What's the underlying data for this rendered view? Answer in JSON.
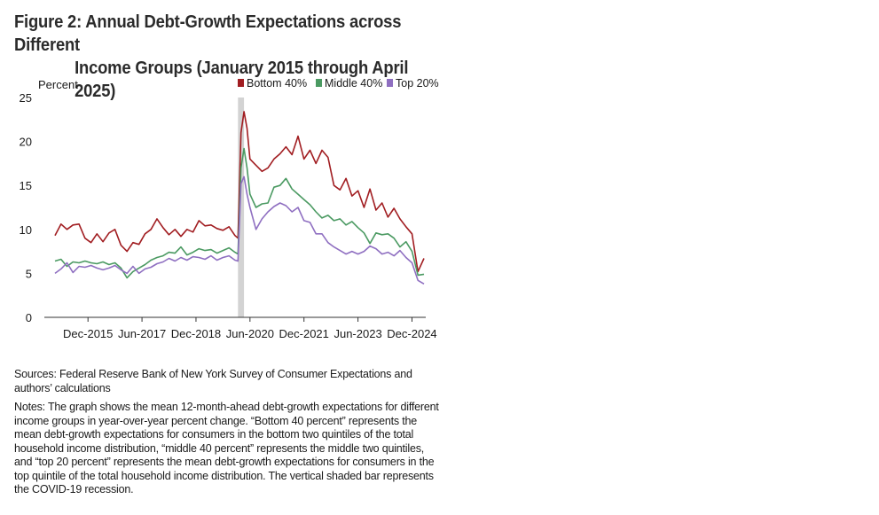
{
  "figure": {
    "title_line1": "Figure 2: Annual Debt-Growth Expectations across Different",
    "title_line2": "Income Groups (January 2015 through April 2025)",
    "sources": "Sources: Federal Reserve Bank of New York Survey of Consumer Expectations and authors’ calculations",
    "notes": "Notes: The graph shows the mean 12-month-ahead debt-growth expectations for different income groups in year-over-year percent change. “Bottom 40 percent” represents the mean debt-growth expectations for consumers in the bottom two quintiles of the total household income distribution, “middle 40 percent” represents the middle two quintiles, and “top 20 percent” represents the mean debt-growth expectations for consumers in the top quintile of the total household income distribution. The vertical shaded bar represents the COVID-19 recession."
  },
  "chart_data": {
    "type": "line",
    "ylabel": "Percent",
    "ylim": [
      0,
      25
    ],
    "yticks": [
      0,
      5,
      10,
      15,
      20,
      25
    ],
    "x_start": "2015-01",
    "x_end": "2025-04",
    "xtick_labels": [
      "Dec-2015",
      "Jun-2017",
      "Dec-2018",
      "Jun-2020",
      "Dec-2021",
      "Jun-2023",
      "Dec-2024"
    ],
    "xtick_dates": [
      "2015-12",
      "2017-06",
      "2018-12",
      "2020-06",
      "2021-12",
      "2023-06",
      "2024-12"
    ],
    "shaded_period": {
      "start": "2020-02",
      "end": "2020-04"
    },
    "legend_position": "top-right",
    "series": [
      {
        "name": "Bottom 40%",
        "color": "#a11d21",
        "points": [
          [
            "2015-01",
            9.3
          ],
          [
            "2015-03",
            10.6
          ],
          [
            "2015-05",
            10.0
          ],
          [
            "2015-07",
            10.5
          ],
          [
            "2015-09",
            10.6
          ],
          [
            "2015-11",
            9.0
          ],
          [
            "2016-01",
            8.5
          ],
          [
            "2016-03",
            9.5
          ],
          [
            "2016-05",
            8.6
          ],
          [
            "2016-07",
            9.6
          ],
          [
            "2016-09",
            10.0
          ],
          [
            "2016-11",
            8.2
          ],
          [
            "2017-01",
            7.5
          ],
          [
            "2017-03",
            8.5
          ],
          [
            "2017-05",
            8.3
          ],
          [
            "2017-07",
            9.5
          ],
          [
            "2017-09",
            10.0
          ],
          [
            "2017-11",
            11.2
          ],
          [
            "2018-01",
            10.2
          ],
          [
            "2018-03",
            9.4
          ],
          [
            "2018-05",
            10.0
          ],
          [
            "2018-07",
            9.2
          ],
          [
            "2018-09",
            10.0
          ],
          [
            "2018-11",
            9.7
          ],
          [
            "2019-01",
            11.0
          ],
          [
            "2019-03",
            10.4
          ],
          [
            "2019-05",
            10.5
          ],
          [
            "2019-07",
            10.1
          ],
          [
            "2019-09",
            9.9
          ],
          [
            "2019-11",
            10.3
          ],
          [
            "2020-01",
            9.3
          ],
          [
            "2020-02",
            9.0
          ],
          [
            "2020-03",
            21.0
          ],
          [
            "2020-04",
            23.4
          ],
          [
            "2020-05",
            21.5
          ],
          [
            "2020-06",
            18.0
          ],
          [
            "2020-08",
            17.3
          ],
          [
            "2020-10",
            16.6
          ],
          [
            "2020-12",
            17.0
          ],
          [
            "2021-02",
            18.0
          ],
          [
            "2021-04",
            18.6
          ],
          [
            "2021-06",
            19.4
          ],
          [
            "2021-08",
            18.5
          ],
          [
            "2021-10",
            20.6
          ],
          [
            "2021-12",
            18.0
          ],
          [
            "2022-02",
            19.0
          ],
          [
            "2022-04",
            17.5
          ],
          [
            "2022-06",
            19.0
          ],
          [
            "2022-08",
            18.2
          ],
          [
            "2022-10",
            15.0
          ],
          [
            "2022-12",
            14.5
          ],
          [
            "2023-02",
            15.8
          ],
          [
            "2023-04",
            13.8
          ],
          [
            "2023-06",
            14.4
          ],
          [
            "2023-08",
            12.5
          ],
          [
            "2023-10",
            14.6
          ],
          [
            "2023-12",
            12.2
          ],
          [
            "2024-02",
            13.0
          ],
          [
            "2024-04",
            11.4
          ],
          [
            "2024-06",
            12.4
          ],
          [
            "2024-08",
            11.2
          ],
          [
            "2024-10",
            10.3
          ],
          [
            "2024-12",
            9.5
          ],
          [
            "2025-02",
            5.2
          ],
          [
            "2025-04",
            6.7
          ]
        ]
      },
      {
        "name": "Middle 40%",
        "color": "#4b9a62",
        "points": [
          [
            "2015-01",
            6.4
          ],
          [
            "2015-03",
            6.6
          ],
          [
            "2015-05",
            5.8
          ],
          [
            "2015-07",
            6.3
          ],
          [
            "2015-09",
            6.2
          ],
          [
            "2015-11",
            6.4
          ],
          [
            "2016-01",
            6.2
          ],
          [
            "2016-03",
            6.1
          ],
          [
            "2016-05",
            6.3
          ],
          [
            "2016-07",
            6.0
          ],
          [
            "2016-09",
            6.2
          ],
          [
            "2016-11",
            5.6
          ],
          [
            "2017-01",
            4.5
          ],
          [
            "2017-03",
            5.2
          ],
          [
            "2017-05",
            5.6
          ],
          [
            "2017-07",
            6.0
          ],
          [
            "2017-09",
            6.5
          ],
          [
            "2017-11",
            6.8
          ],
          [
            "2018-01",
            7.0
          ],
          [
            "2018-03",
            7.4
          ],
          [
            "2018-05",
            7.3
          ],
          [
            "2018-07",
            8.0
          ],
          [
            "2018-09",
            7.1
          ],
          [
            "2018-11",
            7.4
          ],
          [
            "2019-01",
            7.8
          ],
          [
            "2019-03",
            7.6
          ],
          [
            "2019-05",
            7.7
          ],
          [
            "2019-07",
            7.3
          ],
          [
            "2019-09",
            7.6
          ],
          [
            "2019-11",
            7.9
          ],
          [
            "2020-01",
            7.4
          ],
          [
            "2020-02",
            7.2
          ],
          [
            "2020-03",
            17.0
          ],
          [
            "2020-04",
            19.2
          ],
          [
            "2020-05",
            17.0
          ],
          [
            "2020-06",
            14.0
          ],
          [
            "2020-08",
            12.5
          ],
          [
            "2020-10",
            12.9
          ],
          [
            "2020-12",
            13.0
          ],
          [
            "2021-02",
            14.8
          ],
          [
            "2021-04",
            15.0
          ],
          [
            "2021-06",
            15.8
          ],
          [
            "2021-08",
            14.6
          ],
          [
            "2021-10",
            14.0
          ],
          [
            "2021-12",
            13.4
          ],
          [
            "2022-02",
            12.8
          ],
          [
            "2022-04",
            12.0
          ],
          [
            "2022-06",
            11.3
          ],
          [
            "2022-08",
            11.6
          ],
          [
            "2022-10",
            11.0
          ],
          [
            "2022-12",
            11.2
          ],
          [
            "2023-02",
            10.5
          ],
          [
            "2023-04",
            10.9
          ],
          [
            "2023-06",
            10.2
          ],
          [
            "2023-08",
            9.6
          ],
          [
            "2023-10",
            8.4
          ],
          [
            "2023-12",
            9.6
          ],
          [
            "2024-02",
            9.4
          ],
          [
            "2024-04",
            9.5
          ],
          [
            "2024-06",
            9.0
          ],
          [
            "2024-08",
            8.0
          ],
          [
            "2024-10",
            8.6
          ],
          [
            "2024-12",
            7.5
          ],
          [
            "2025-02",
            4.8
          ],
          [
            "2025-04",
            4.9
          ]
        ]
      },
      {
        "name": "Top 20%",
        "color": "#8f6fc1",
        "points": [
          [
            "2015-01",
            5.0
          ],
          [
            "2015-03",
            5.5
          ],
          [
            "2015-05",
            6.2
          ],
          [
            "2015-07",
            5.1
          ],
          [
            "2015-09",
            5.8
          ],
          [
            "2015-11",
            5.7
          ],
          [
            "2016-01",
            5.9
          ],
          [
            "2016-03",
            5.6
          ],
          [
            "2016-05",
            5.4
          ],
          [
            "2016-07",
            5.6
          ],
          [
            "2016-09",
            5.9
          ],
          [
            "2016-11",
            5.4
          ],
          [
            "2017-01",
            5.0
          ],
          [
            "2017-03",
            5.8
          ],
          [
            "2017-05",
            5.0
          ],
          [
            "2017-07",
            5.5
          ],
          [
            "2017-09",
            5.7
          ],
          [
            "2017-11",
            6.1
          ],
          [
            "2018-01",
            6.3
          ],
          [
            "2018-03",
            6.7
          ],
          [
            "2018-05",
            6.4
          ],
          [
            "2018-07",
            6.8
          ],
          [
            "2018-09",
            6.5
          ],
          [
            "2018-11",
            6.9
          ],
          [
            "2019-01",
            6.8
          ],
          [
            "2019-03",
            6.6
          ],
          [
            "2019-05",
            7.0
          ],
          [
            "2019-07",
            6.5
          ],
          [
            "2019-09",
            6.8
          ],
          [
            "2019-11",
            7.0
          ],
          [
            "2020-01",
            6.5
          ],
          [
            "2020-02",
            6.4
          ],
          [
            "2020-03",
            15.2
          ],
          [
            "2020-04",
            16.0
          ],
          [
            "2020-05",
            14.0
          ],
          [
            "2020-06",
            12.5
          ],
          [
            "2020-08",
            10.0
          ],
          [
            "2020-10",
            11.2
          ],
          [
            "2020-12",
            12.0
          ],
          [
            "2021-02",
            12.6
          ],
          [
            "2021-04",
            13.0
          ],
          [
            "2021-06",
            12.7
          ],
          [
            "2021-08",
            12.0
          ],
          [
            "2021-10",
            12.5
          ],
          [
            "2021-12",
            11.0
          ],
          [
            "2022-02",
            10.8
          ],
          [
            "2022-04",
            9.5
          ],
          [
            "2022-06",
            9.5
          ],
          [
            "2022-08",
            8.5
          ],
          [
            "2022-10",
            8.0
          ],
          [
            "2022-12",
            7.6
          ],
          [
            "2023-02",
            7.2
          ],
          [
            "2023-04",
            7.5
          ],
          [
            "2023-06",
            7.2
          ],
          [
            "2023-08",
            7.5
          ],
          [
            "2023-10",
            8.1
          ],
          [
            "2023-12",
            7.8
          ],
          [
            "2024-02",
            7.2
          ],
          [
            "2024-04",
            7.4
          ],
          [
            "2024-06",
            7.0
          ],
          [
            "2024-08",
            7.6
          ],
          [
            "2024-10",
            6.8
          ],
          [
            "2024-12",
            6.2
          ],
          [
            "2025-02",
            4.2
          ],
          [
            "2025-04",
            3.8
          ]
        ]
      }
    ]
  }
}
